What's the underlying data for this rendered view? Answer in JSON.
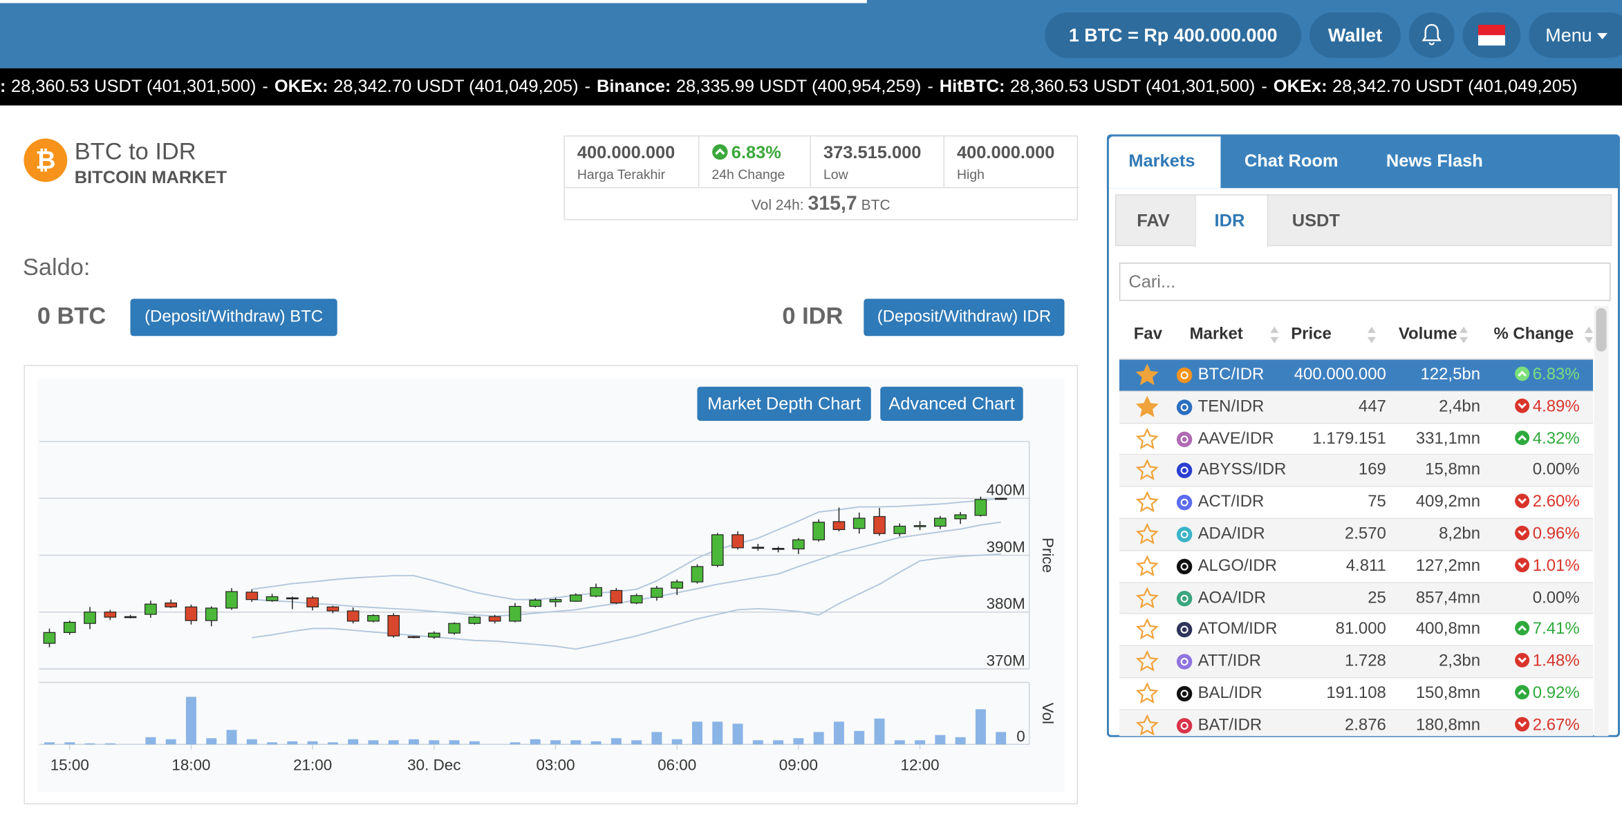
{
  "header": {
    "rate": "1 BTC = Rp 400.000.000",
    "wallet": "Wallet",
    "menu": "Menu"
  },
  "ticker": {
    "separator": "-",
    "items": [
      {
        "name": ":",
        "text": "28,360.53 USDT (401,301,500)"
      },
      {
        "name": "OKEx:",
        "text": "28,342.70 USDT (401,049,205)"
      },
      {
        "name": "Binance:",
        "text": "28,335.99 USDT (400,954,259)"
      },
      {
        "name": "HitBTC:",
        "text": "28,360.53 USDT (401,301,500)"
      },
      {
        "name": "OKEx:",
        "text": "28,342.70 USDT (401,049,205)"
      }
    ]
  },
  "market": {
    "title": "BTC to IDR",
    "subtitle": "BITCOIN MARKET"
  },
  "stats": {
    "items": [
      {
        "value": "400.000.000",
        "label": "Harga Terakhir"
      },
      {
        "value": "6.83%",
        "label": "24h Change"
      },
      {
        "value": "373.515.000",
        "label": "Low"
      },
      {
        "value": "400.000.000",
        "label": "High"
      }
    ],
    "vol_label": "Vol 24h:",
    "vol_value": "315,7",
    "vol_unit": "BTC"
  },
  "balance": {
    "title": "Saldo:",
    "btc": "0 BTC",
    "btc_button": "(Deposit/Withdraw) BTC",
    "idr": "0 IDR",
    "idr_button": "(Deposit/Withdraw) IDR"
  },
  "chart_buttons": [
    "Market Depth Chart",
    "Advanced Chart"
  ],
  "chart_data": {
    "type": "candlestick",
    "y_title": "Price",
    "vol_title": "Vol",
    "xlim": [
      -0.5,
      48.4
    ],
    "xticks": [
      {
        "value": 1,
        "label": "15:00"
      },
      {
        "value": 7,
        "label": "18:00"
      },
      {
        "value": 13,
        "label": "21:00"
      },
      {
        "value": 19,
        "label": "30. Dec"
      },
      {
        "value": 25,
        "label": "03:00"
      },
      {
        "value": 31,
        "label": "06:00"
      },
      {
        "value": 37,
        "label": "09:00"
      },
      {
        "value": 43,
        "label": "12:00"
      }
    ],
    "ylim": [
      370,
      410
    ],
    "yticks": [
      {
        "value": 370,
        "label": "370M"
      },
      {
        "value": 380,
        "label": "380M"
      },
      {
        "value": 390,
        "label": "390M"
      },
      {
        "value": 400,
        "label": "400M"
      }
    ],
    "vol_ylim": [
      0,
      60
    ],
    "vol_yticks": [
      0
    ],
    "up_color": "#4cb83a",
    "down_color": "#d8472b",
    "vol_color": "#8ab4e6",
    "band_color": "#b3c7dd",
    "open": [
      374.5,
      376.4,
      378.0,
      380.0,
      379.2,
      379.6,
      381.6,
      380.9,
      378.5,
      380.7,
      383.5,
      382.0,
      382.5,
      382.5,
      380.9,
      380.2,
      378.4,
      379.4,
      375.7,
      375.6,
      376.3,
      378.0,
      379.2,
      378.4,
      381.0,
      381.8,
      381.9,
      382.8,
      383.8,
      381.6,
      382.6,
      384.2,
      385.3,
      388.2,
      393.6,
      391.4,
      391.2,
      391.1,
      392.7,
      395.9,
      394.7,
      396.8,
      393.8,
      395.1,
      395.1,
      396.4,
      397.0,
      400.0
    ],
    "high": [
      377.1,
      378.5,
      380.9,
      380.4,
      379.5,
      382.0,
      382.2,
      381.3,
      381.0,
      384.2,
      384.0,
      383.2,
      382.7,
      382.8,
      381.1,
      380.8,
      379.6,
      379.8,
      375.8,
      376.6,
      378.2,
      379.3,
      379.5,
      381.6,
      382.4,
      382.5,
      383.3,
      385.0,
      384.2,
      383.2,
      384.6,
      385.7,
      388.4,
      393.9,
      394.2,
      392.0,
      391.5,
      393.0,
      396.3,
      398.4,
      397.5,
      398.3,
      395.6,
      396.0,
      396.9,
      397.6,
      400.3,
      400.1
    ],
    "low": [
      373.8,
      376.0,
      377.0,
      378.6,
      378.9,
      379.0,
      380.7,
      377.8,
      377.5,
      380.4,
      381.8,
      381.8,
      380.5,
      380.3,
      379.8,
      378.0,
      378.2,
      375.5,
      375.4,
      375.3,
      376.0,
      377.8,
      378.0,
      378.2,
      380.8,
      380.9,
      381.8,
      382.6,
      381.4,
      381.4,
      382.0,
      383.0,
      385.0,
      387.9,
      391.0,
      390.8,
      390.5,
      390.2,
      392.4,
      394.2,
      393.8,
      393.4,
      393.3,
      394.4,
      394.6,
      395.5,
      396.8,
      399.9
    ],
    "close": [
      376.4,
      378.2,
      380.0,
      379.1,
      379.2,
      381.4,
      380.9,
      378.5,
      380.7,
      383.6,
      382.2,
      382.7,
      382.5,
      380.9,
      380.2,
      378.4,
      379.4,
      375.8,
      375.6,
      376.3,
      378.0,
      379.1,
      378.4,
      381.0,
      382.1,
      382.2,
      383.0,
      384.3,
      381.6,
      382.9,
      384.2,
      385.3,
      388.0,
      393.6,
      391.3,
      391.4,
      391.2,
      392.7,
      395.8,
      394.5,
      396.5,
      393.8,
      395.1,
      395.2,
      396.5,
      397.1,
      399.8,
      400.0
    ],
    "volume": [
      2,
      2,
      1,
      1,
      0,
      7,
      5,
      46,
      6,
      14,
      5,
      2,
      3,
      3,
      2,
      5,
      4,
      4,
      5,
      4,
      4,
      3,
      0,
      2,
      5,
      4,
      4,
      3,
      6,
      4,
      12,
      5,
      22,
      22,
      20,
      4,
      4,
      6,
      12,
      22,
      13,
      25,
      4,
      4,
      9,
      7,
      34,
      12
    ],
    "bands": [
      {
        "values": [
          null,
          null,
          null,
          null,
          null,
          null,
          null,
          null,
          null,
          null,
          384,
          384.5,
          385,
          385.3,
          385.7,
          386,
          386.2,
          386.4,
          386.4,
          385.5,
          384.5,
          383.5,
          382.8,
          382.2,
          382.2,
          382.5,
          383,
          383.3,
          383.6,
          384,
          385.5,
          387.5,
          389.5,
          391,
          392,
          393,
          394.5,
          396,
          397.6,
          398,
          398.5,
          398.5,
          398.6,
          398.8,
          399,
          399.3,
          399.6,
          400
        ]
      },
      {
        "values": [
          null,
          null,
          null,
          null,
          null,
          null,
          null,
          null,
          null,
          null,
          382.2,
          382,
          381.8,
          381.5,
          381.3,
          381,
          380.8,
          380.6,
          380.4,
          380.1,
          379.8,
          379.5,
          379.3,
          379.5,
          379.8,
          380.1,
          380.4,
          381,
          381.5,
          382.1,
          382.7,
          383.4,
          384.1,
          384.9,
          385.5,
          386.1,
          386.7,
          388,
          389.2,
          390.4,
          391.3,
          392.2,
          393.1,
          393.6,
          394.1,
          394.6,
          395.3,
          395.8
        ]
      },
      {
        "values": [
          null,
          null,
          null,
          null,
          null,
          null,
          null,
          null,
          null,
          null,
          375.5,
          376,
          376.6,
          377.1,
          377.1,
          376.8,
          376.5,
          376.2,
          375.9,
          375.6,
          375.3,
          375,
          374.9,
          374.6,
          374.3,
          374,
          373.5,
          374.2,
          375,
          375.8,
          376.8,
          377.8,
          378.8,
          379.6,
          380.4,
          380.6,
          380.4,
          380.1,
          379.5,
          381.5,
          383.2,
          384.9,
          387,
          389,
          389.5,
          389.8,
          390,
          390.2
        ]
      }
    ]
  },
  "panel": {
    "tabs": [
      "Markets",
      "Chat Room",
      "News Flash"
    ],
    "subtabs": [
      "FAV",
      "IDR",
      "USDT"
    ],
    "search": "Cari...",
    "columns": [
      "Fav",
      "Market",
      "Price",
      "Volume",
      "% Change"
    ],
    "rows": [
      {
        "fav": true,
        "market": "BTC/IDR",
        "price": "400.000.000",
        "volume": "122,5bn",
        "change": "6.83%",
        "trend": "up"
      },
      {
        "fav": true,
        "market": "TEN/IDR",
        "price": "447",
        "volume": "2,4bn",
        "change": "4.89%",
        "trend": "down"
      },
      {
        "fav": false,
        "market": "AAVE/IDR",
        "price": "1.179.151",
        "volume": "331,1mn",
        "change": "4.32%",
        "trend": "up"
      },
      {
        "fav": false,
        "market": "ABYSS/IDR",
        "price": "169",
        "volume": "15,8mn",
        "change": "0.00%",
        "trend": "none"
      },
      {
        "fav": false,
        "market": "ACT/IDR",
        "price": "75",
        "volume": "409,2mn",
        "change": "2.60%",
        "trend": "down"
      },
      {
        "fav": false,
        "market": "ADA/IDR",
        "price": "2.570",
        "volume": "8,2bn",
        "change": "0.96%",
        "trend": "down"
      },
      {
        "fav": false,
        "market": "ALGO/IDR",
        "price": "4.811",
        "volume": "127,2mn",
        "change": "1.01%",
        "trend": "down"
      },
      {
        "fav": false,
        "market": "AOA/IDR",
        "price": "25",
        "volume": "857,4mn",
        "change": "0.00%",
        "trend": "none"
      },
      {
        "fav": false,
        "market": "ATOM/IDR",
        "price": "81.000",
        "volume": "400,8mn",
        "change": "7.41%",
        "trend": "up"
      },
      {
        "fav": false,
        "market": "ATT/IDR",
        "price": "1.728",
        "volume": "2,3bn",
        "change": "1.48%",
        "trend": "down"
      },
      {
        "fav": false,
        "market": "BAL/IDR",
        "price": "191.108",
        "volume": "150,8mn",
        "change": "0.92%",
        "trend": "up"
      },
      {
        "fav": false,
        "market": "BAT/IDR",
        "price": "2.876",
        "volume": "180,8mn",
        "change": "2.67%",
        "trend": "down"
      }
    ]
  }
}
